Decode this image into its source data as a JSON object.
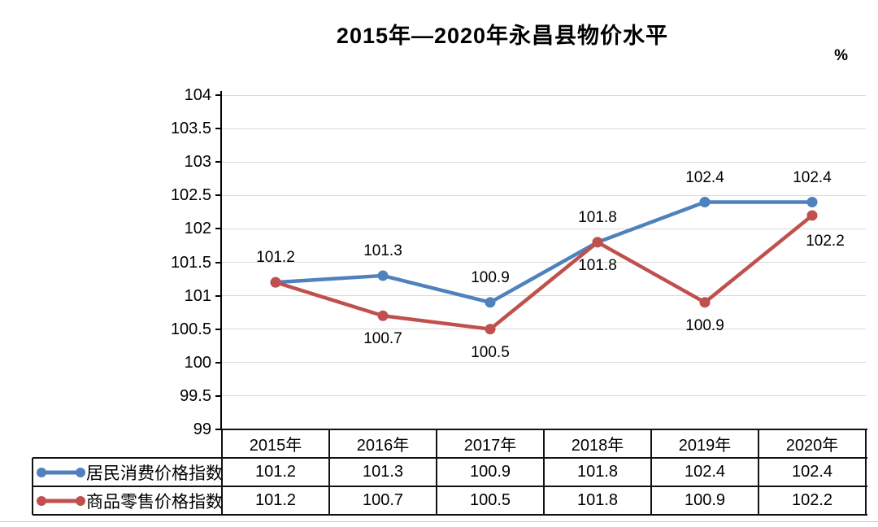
{
  "title": "2015年—2020年永昌县物价水平",
  "unit_label": "%",
  "colors": {
    "cpi_blue": "#4F81BD",
    "rpi_red": "#C0504D",
    "gridline": "#d9d9d9",
    "axis": "#000000",
    "table_border": "#111111"
  },
  "chart_data": {
    "type": "line",
    "title": "2015年—2020年永昌县物价水平",
    "unit": "%",
    "categories": [
      "2015年",
      "2016年",
      "2017年",
      "2018年",
      "2019年",
      "2020年"
    ],
    "series": [
      {
        "name": "居民消费价格指数",
        "color": "#4F81BD",
        "values": [
          101.2,
          101.3,
          100.9,
          101.8,
          102.4,
          102.4
        ]
      },
      {
        "name": "商品零售价格指数",
        "color": "#C0504D",
        "values": [
          101.2,
          100.7,
          100.5,
          101.8,
          100.9,
          102.2
        ]
      }
    ],
    "ylim": [
      99,
      104
    ],
    "ytick_step": 0.5,
    "y_ticks": [
      "104",
      "103.5",
      "103",
      "102.5",
      "102",
      "101.5",
      "101",
      "100.5",
      "100",
      "99.5",
      "99"
    ],
    "grid": true,
    "data_labels": true,
    "legend_position": "table-left"
  },
  "table": {
    "column_headers": [
      "2015年",
      "2016年",
      "2017年",
      "2018年",
      "2019年",
      "2020年"
    ],
    "rows": [
      {
        "label": "居民消费价格指数",
        "marker_color": "#4F81BD",
        "values": [
          "101.2",
          "101.3",
          "100.9",
          "101.8",
          "102.4",
          "102.4"
        ]
      },
      {
        "label": "商品零售价格指数",
        "marker_color": "#C0504D",
        "values": [
          "101.2",
          "100.7",
          "100.5",
          "101.8",
          "100.9",
          "102.2"
        ]
      }
    ]
  }
}
